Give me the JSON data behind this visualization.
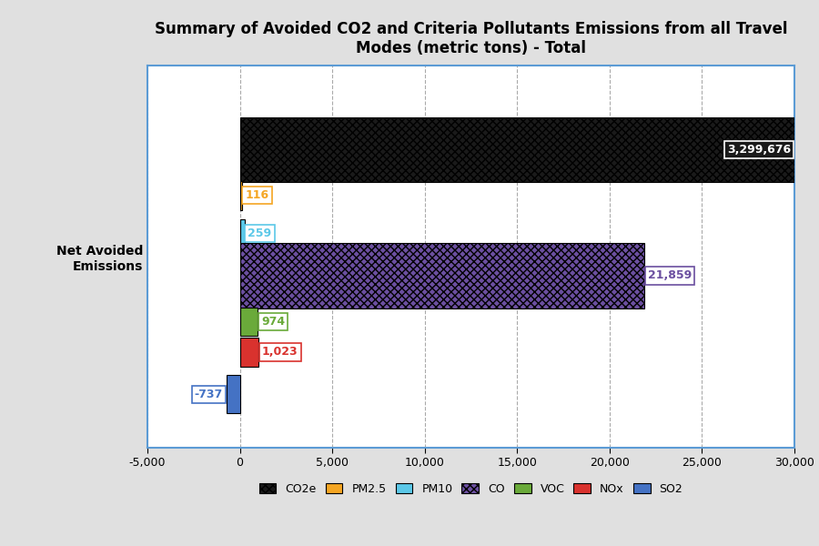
{
  "title": "Summary of Avoided CO2 and Criteria Pollutants Emissions from all Travel\nModes (metric tons) - Total",
  "category": "Net Avoided\nEmissions",
  "series": [
    {
      "label": "CO2e",
      "value": 3299676,
      "color": "#1a1a1a",
      "hatch": "xxxx",
      "text": "3,299,676",
      "text_color": "#ffffff",
      "text_bg": "#1a1a1a",
      "text_ha": "right",
      "large": true
    },
    {
      "label": "PM2.5",
      "value": 116,
      "color": "#f5a623",
      "hatch": "",
      "text": "116",
      "text_color": "#f5a623",
      "text_bg": "#ffffff",
      "text_ha": "left",
      "large": false
    },
    {
      "label": "PM10",
      "value": 259,
      "color": "#5bc8e8",
      "hatch": "",
      "text": "259",
      "text_color": "#5bc8e8",
      "text_bg": "#ffffff",
      "text_ha": "left",
      "large": false
    },
    {
      "label": "CO",
      "value": 21859,
      "color": "#6b4fa0",
      "hatch": "xxxx",
      "text": "21,859",
      "text_color": "#6b4fa0",
      "text_bg": "#ffffff",
      "text_ha": "right",
      "large": true
    },
    {
      "label": "VOC",
      "value": 974,
      "color": "#6aaa3a",
      "hatch": "",
      "text": "974",
      "text_color": "#6aaa3a",
      "text_bg": "#ffffff",
      "text_ha": "left",
      "large": false
    },
    {
      "label": "NOx",
      "value": 1023,
      "color": "#d9322e",
      "hatch": "",
      "text": "1,023",
      "text_color": "#d9322e",
      "text_bg": "#ffffff",
      "text_ha": "left",
      "large": false
    },
    {
      "label": "SO2",
      "value": -737,
      "color": "#4472c4",
      "hatch": "",
      "text": "-737",
      "text_color": "#4472c4",
      "text_bg": "#ffffff",
      "text_ha": "right",
      "large": false
    }
  ],
  "xlim": [
    -5000,
    30000
  ],
  "xticks": [
    -5000,
    0,
    5000,
    10000,
    15000,
    20000,
    25000,
    30000
  ],
  "xticklabels": [
    "-5,000",
    "0",
    "5,000",
    "10,000",
    "15,000",
    "20,000",
    "25,000",
    "30,000"
  ],
  "y_offsets": [
    0.28,
    0.16,
    0.06,
    -0.05,
    -0.17,
    -0.25,
    -0.36
  ],
  "bar_heights": [
    0.17,
    0.075,
    0.075,
    0.17,
    0.075,
    0.075,
    0.1
  ],
  "background_outer": "#e0e0e0",
  "background_plot": "#ffffff",
  "grid_color": "#aaaaaa",
  "border_color": "#5b9bd5",
  "title_fontsize": 12,
  "label_fontsize": 10,
  "tick_fontsize": 9,
  "legend_fontsize": 9
}
